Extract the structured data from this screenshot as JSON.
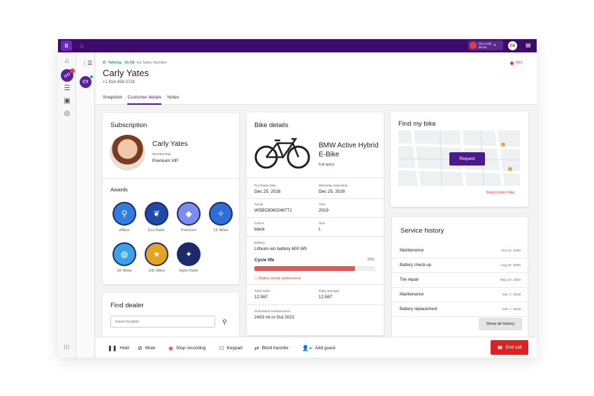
{
  "topbar": {
    "logo": "it",
    "oncall_label": "On a call",
    "oncall_time": "01:54",
    "user_initials": "CD"
  },
  "call": {
    "status": "Talking · 01:58",
    "via": "via Sales Number",
    "name": "Carly Yates",
    "phone": "+1 814-458-3728",
    "rec": "REC",
    "avatar_initials": "CY"
  },
  "tabs": [
    "Snapshot",
    "Customer details",
    "Notes"
  ],
  "subscription": {
    "title": "Subscription",
    "name": "Carly Yates",
    "membership_label": "Membership",
    "membership_value": "Premium VIP",
    "awards_title": "Awards",
    "awards": [
      {
        "label": "eBiker",
        "color": "#2f7de1",
        "icon": "bike-icon"
      },
      {
        "label": "Eco Rider",
        "color": "#1c4aa8",
        "icon": "leaf-icon"
      },
      {
        "label": "Premium",
        "color": "#7b8ef0",
        "icon": "diamond-icon"
      },
      {
        "label": "1K Miles",
        "color": "#2d6fd6",
        "icon": "compass-icon"
      },
      {
        "label": "5K Miles",
        "color": "#3aa2e8",
        "icon": "globe-icon"
      },
      {
        "label": "10K Miles",
        "color": "#e6a31e",
        "icon": "star-icon"
      },
      {
        "label": "Night Rider",
        "color": "#1d2b6b",
        "icon": "stars-icon"
      }
    ]
  },
  "dealer": {
    "title": "Find dealer",
    "placeholder": "Insert location"
  },
  "bike": {
    "title": "Bike details",
    "name": "BMW Active Hybrid E-Bike",
    "full_specs": "Full specs",
    "purchase_label": "Purchase date",
    "purchase_value": "Dec 25, 2018",
    "warranty_label": "Warranty expiration",
    "warranty_value": "Dec 25, 2028",
    "serial_label": "Serial",
    "serial_value": "WSBC606024677J",
    "year_label": "Year",
    "year_value": "2019",
    "colors_label": "Colors",
    "colors_value": "black",
    "size_label": "Size",
    "size_value": "L",
    "battery_label": "Battery",
    "battery_value": "Lithium-ion battery 600 Wh",
    "cycle_label": "Cycle life",
    "cycle_pct_text": "83%",
    "cycle_pct": 0.83,
    "warning": "Battery needs replacement",
    "miles_label": "Total miles",
    "miles_value": "12.567",
    "daily_label": "Daily average",
    "daily_value": "12.567",
    "maint_label": "Scheduled maintenance",
    "maint_value": "2433 mi or Out 2021"
  },
  "findbike": {
    "title": "Find my bike",
    "request": "Request",
    "report": "Report stolen bike"
  },
  "service": {
    "title": "Service history",
    "rows": [
      {
        "name": "Maintenance",
        "date": "Oct 16, 2020"
      },
      {
        "name": "Battery check-up",
        "date": "Aug 24, 2020"
      },
      {
        "name": "Tire repair",
        "date": "May 19, 2020"
      },
      {
        "name": "Maintenance",
        "date": "Dec 7, 2019"
      },
      {
        "name": "Battery replacement",
        "date": "Dec 7, 2019"
      }
    ],
    "show_all": "Show all history"
  },
  "callbar": {
    "hold": "Hold",
    "mute": "Mute",
    "stop_recording": "Stop recording",
    "keypad": "Keypad",
    "blind_transfer": "Blind transfer",
    "add_guest": "Add guest",
    "end_call": "End call"
  }
}
